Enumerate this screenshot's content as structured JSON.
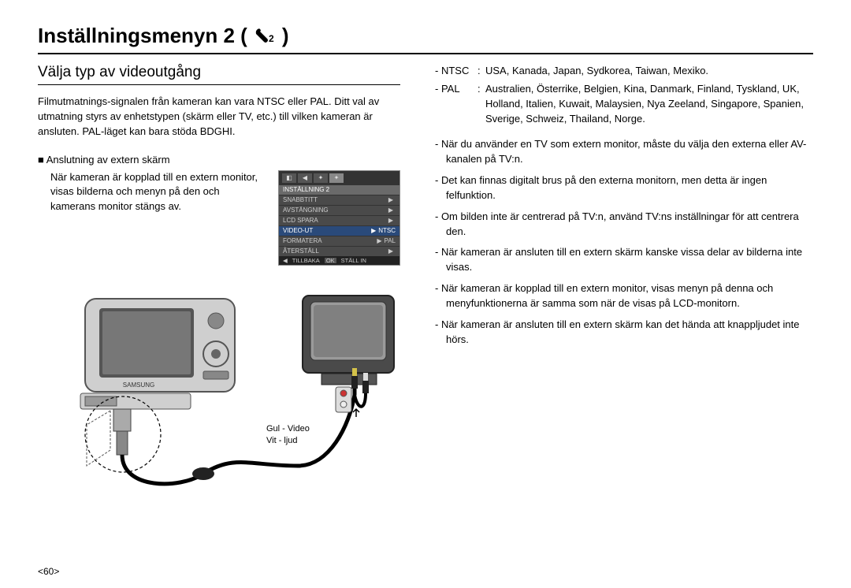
{
  "title": "Inställningsmenyn 2 (",
  "title_close": ")",
  "section_heading": "Välja typ av videoutgång",
  "intro_para": "Filmutmatnings-signalen från kameran kan vara NTSC eller PAL. Ditt val av utmatning styrs av enhetstypen (skärm eller TV, etc.) till vilken kameran är ansluten. PAL-läget kan bara stöda BDGHI.",
  "subhead": "■ Anslutning av extern skärm",
  "subtext": "När kameran är kopplad till en extern monitor, visas bilderna och menyn på den och kamerans monitor stängs av.",
  "menu": {
    "title": "INSTÄLLNING 2",
    "rows": [
      {
        "label": "SNABBTITT",
        "value": ""
      },
      {
        "label": "AVSTÄNGNING",
        "value": ""
      },
      {
        "label": "LCD SPARA",
        "value": ""
      },
      {
        "label": "VIDEO-UT",
        "value": "NTSC",
        "selected": true
      },
      {
        "label": "FORMATERA",
        "value": "PAL"
      },
      {
        "label": "ÅTERSTÄLL",
        "value": ""
      }
    ],
    "footer_back": "TILLBAKA",
    "footer_ok": "OK",
    "footer_set": "STÄLL IN"
  },
  "defs": {
    "ntsc_key": "- NTSC",
    "ntsc_val": "USA, Kanada, Japan, Sydkorea, Taiwan, Mexiko.",
    "pal_key": "- PAL",
    "pal_val": "Australien, Österrike, Belgien, Kina, Danmark, Finland, Tyskland, UK, Holland, Italien, Kuwait, Malaysien, Nya Zeeland, Singapore, Spanien, Sverige, Schweiz, Thailand, Norge."
  },
  "bullets": [
    "- När du använder en TV som extern monitor, måste du välja den externa eller AV-kanalen på TV:n.",
    "- Det kan finnas digitalt brus på den externa monitorn, men detta är ingen felfunktion.",
    "- Om bilden inte är centrerad på TV:n, använd TV:ns inställningar för att centrera den.",
    "- När kameran är ansluten till en extern skärm kanske vissa delar av bilderna inte visas.",
    "- När kameran är kopplad till en extern monitor, visas menyn på denna och menyfunktionerna är samma som när de visas på LCD-monitorn.",
    "- När kameran är ansluten till en extern skärm kan det hända att knappljudet inte hörs."
  ],
  "cable_labels": {
    "l1": "Gul - Video",
    "l2": "Vit - ljud"
  },
  "page_num": "<60>",
  "colors": {
    "menu_bg": "#4a4a4a",
    "menu_sel": "#2a4a7a",
    "camera_body": "#cfcfcf",
    "camera_screen": "#555555",
    "tv_body": "#4a4a4a",
    "tv_screen": "#9a9a9a"
  }
}
